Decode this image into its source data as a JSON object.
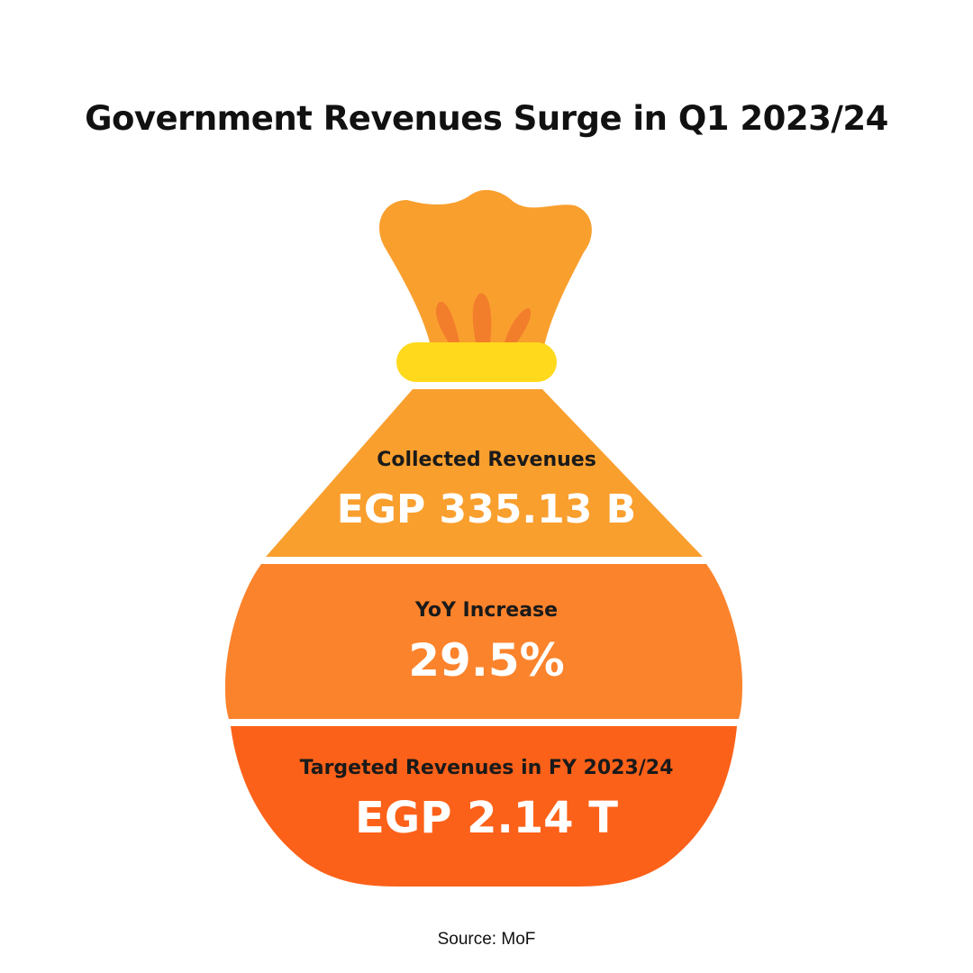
{
  "title": "Government Revenues Surge in Q1 2023/24",
  "colors": {
    "neck": "#F99F2E",
    "neck_detail": "#F27D2B",
    "tie_band": "#FFD91C",
    "top_segment": "#F99F2E",
    "middle_segment": "#FB832C",
    "bottom_segment": "#FC6119",
    "divider": "#ffffff"
  },
  "segments": [
    {
      "label": "Collected Revenues",
      "value": "EGP 335.13 B"
    },
    {
      "label": "YoY Increase",
      "value": "29.5%"
    },
    {
      "label": "Targeted Revenues in FY 2023/24",
      "value": "EGP 2.14 T"
    }
  ],
  "source": "Source: MoF"
}
